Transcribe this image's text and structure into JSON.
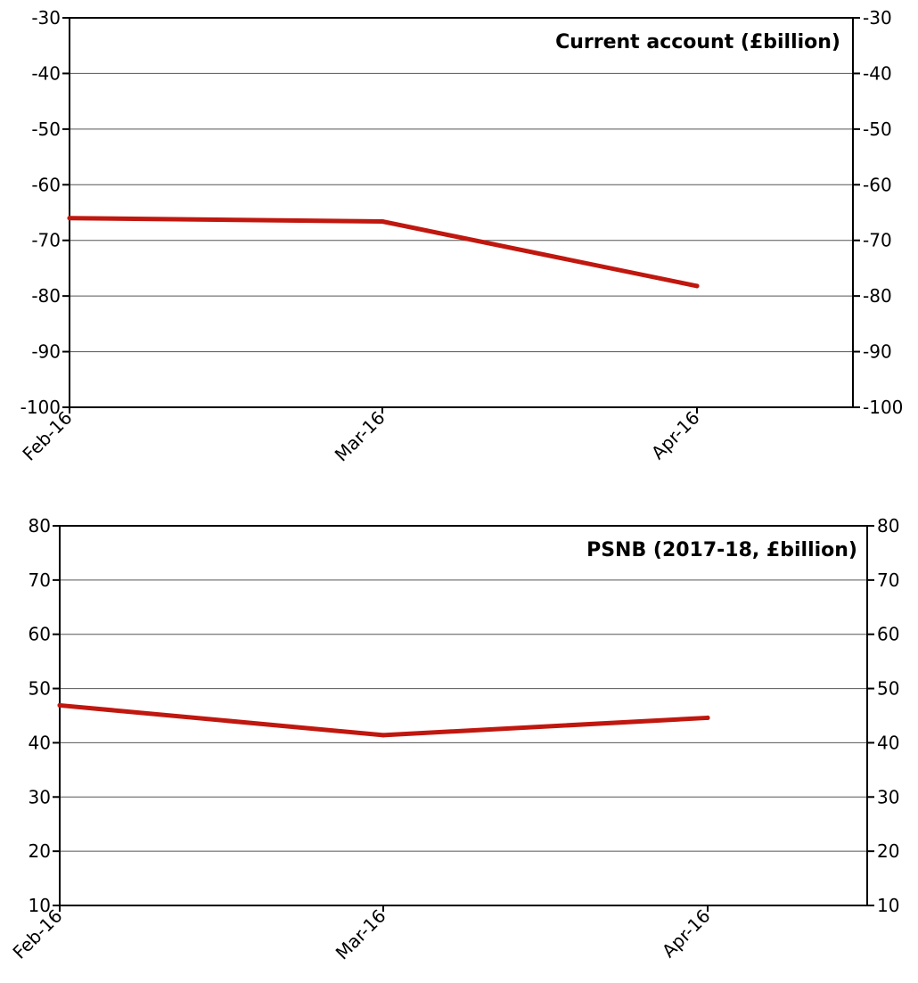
{
  "chart_data": [
    {
      "type": "line",
      "title": "Current account (£billion)",
      "categories": [
        "Feb-16",
        "Mar-16",
        "Apr-16"
      ],
      "series": [
        {
          "values": [
            -66,
            -66.6,
            -78.2
          ],
          "color": "#c0170f"
        }
      ],
      "ylim": [
        -100,
        -30
      ],
      "yticks": [
        -30,
        -40,
        -50,
        -60,
        -70,
        -80,
        -90,
        -100
      ],
      "grid": true,
      "secondary_axis": true
    },
    {
      "type": "line",
      "title": "PSNB (2017-18, £billion)",
      "categories": [
        "Feb-16",
        "Mar-16",
        "Apr-16"
      ],
      "series": [
        {
          "values": [
            46.9,
            41.4,
            44.6
          ],
          "color": "#c0170f"
        }
      ],
      "ylim": [
        10,
        80
      ],
      "yticks": [
        80,
        70,
        60,
        50,
        40,
        30,
        20,
        10
      ],
      "grid": true,
      "secondary_axis": true
    }
  ]
}
